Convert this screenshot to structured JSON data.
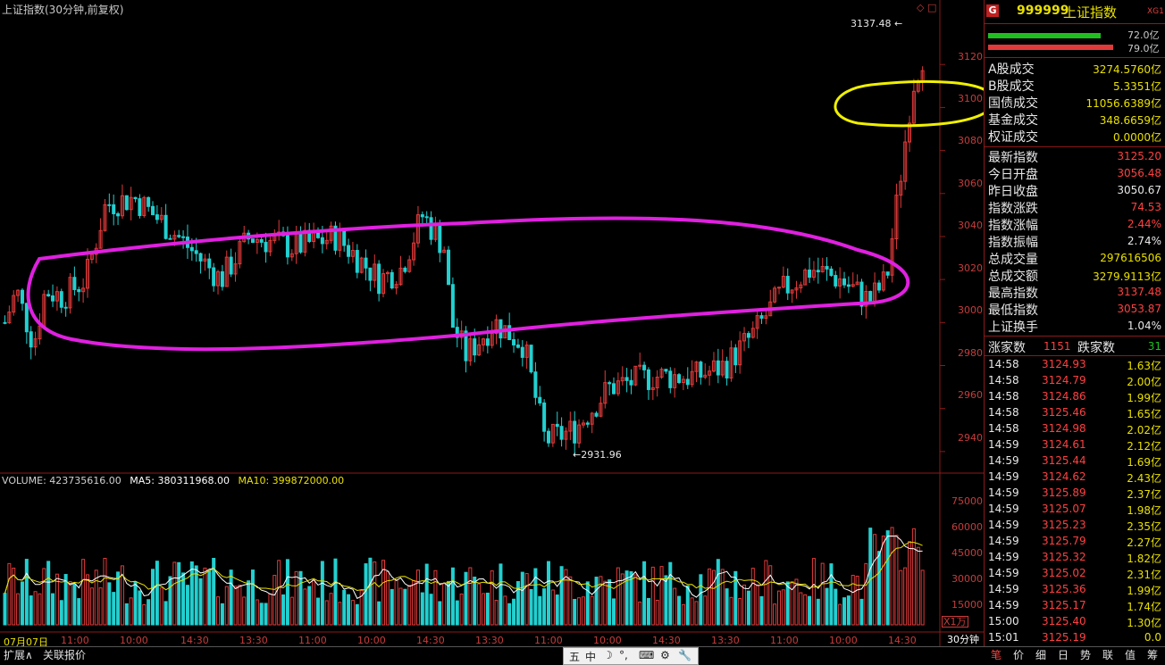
{
  "chart": {
    "title": "上证指数(30分钟,前复权)",
    "high_marker": "3137.48",
    "low_marker": "2931.96",
    "price_ticks": [
      "3120",
      "3100",
      "3080",
      "3060",
      "3040",
      "3020",
      "3000",
      "2980",
      "2960",
      "2940"
    ],
    "volume_header": {
      "label": "VOLUME: 423735616.00",
      "ma5": "MA5: 380311968.00",
      "ma10": "MA10: 399872000.00"
    },
    "volume_ticks": [
      "75000",
      "60000",
      "45000",
      "30000",
      "15000"
    ],
    "volume_unit": "X1万",
    "time_labels": [
      "07月07日",
      "11:00",
      "10:00",
      "14:30",
      "13:30",
      "11:00",
      "10:00",
      "14:30",
      "13:30",
      "11:00",
      "10:00",
      "14:30",
      "13:30",
      "11:00",
      "10:00",
      "14:30"
    ],
    "period": "30分钟",
    "colors": {
      "up": "#e03a3a",
      "down": "#22d0d0",
      "ma_white": "#ffffff",
      "ma_yellow": "#e8e000",
      "annot_magenta": "#e020e0",
      "annot_yellow": "#f0f000",
      "grid": "#8b1a1a"
    }
  },
  "chart_data": {
    "type": "candlestick",
    "title": "上证指数(30分钟,前复权)",
    "ylim": [
      2925,
      3145
    ],
    "price_ticks": [
      3120,
      3100,
      3080,
      3060,
      3040,
      3020,
      3000,
      2980,
      2960,
      2940
    ],
    "high": 3137.48,
    "low": 2931.96,
    "volume_ticks": [
      75000,
      60000,
      45000,
      30000,
      15000
    ],
    "volume_unit": "X1万",
    "annotations": [
      "magenta ellipse around consolidation 2985–3035",
      "yellow ellipse near 3100"
    ]
  },
  "panel": {
    "code": "999999",
    "name": "上证指数",
    "tag": "XG1",
    "bar_values": [
      "72.0亿",
      "79.0亿"
    ],
    "turnover": [
      {
        "k": "A股成交",
        "v": "3274.5760亿"
      },
      {
        "k": "B股成交",
        "v": "5.3351亿"
      },
      {
        "k": "国债成交",
        "v": "11056.6389亿"
      },
      {
        "k": "基金成交",
        "v": "348.6659亿"
      },
      {
        "k": "权证成交",
        "v": "0.0000亿"
      }
    ],
    "stats": [
      {
        "k": "最新指数",
        "v": "3125.20",
        "c": "red"
      },
      {
        "k": "今日开盘",
        "v": "3056.48",
        "c": "red"
      },
      {
        "k": "昨日收盘",
        "v": "3050.67",
        "c": "white"
      },
      {
        "k": "指数涨跌",
        "v": "74.53",
        "c": "red"
      },
      {
        "k": "指数涨幅",
        "v": "2.44%",
        "c": "red"
      },
      {
        "k": "指数振幅",
        "v": "2.74%",
        "c": "white"
      },
      {
        "k": "总成交量",
        "v": "297616506",
        "c": "yellow"
      },
      {
        "k": "总成交额",
        "v": "3279.9113亿",
        "c": "yellow"
      },
      {
        "k": "最高指数",
        "v": "3137.48",
        "c": "red"
      },
      {
        "k": "最低指数",
        "v": "3053.87",
        "c": "red"
      },
      {
        "k": "上证换手",
        "v": "1.04%",
        "c": "white"
      }
    ],
    "breadth": {
      "up_label": "涨家数",
      "up": "1151",
      "down_label": "跌家数",
      "down": "31"
    },
    "ticks": [
      {
        "t": "14:58",
        "p": "3124.93",
        "a": "1.63亿"
      },
      {
        "t": "14:58",
        "p": "3124.79",
        "a": "2.00亿"
      },
      {
        "t": "14:58",
        "p": "3124.86",
        "a": "1.99亿"
      },
      {
        "t": "14:58",
        "p": "3125.46",
        "a": "1.65亿"
      },
      {
        "t": "14:58",
        "p": "3124.98",
        "a": "2.02亿"
      },
      {
        "t": "14:59",
        "p": "3124.61",
        "a": "2.12亿"
      },
      {
        "t": "14:59",
        "p": "3125.44",
        "a": "1.69亿"
      },
      {
        "t": "14:59",
        "p": "3124.62",
        "a": "2.43亿"
      },
      {
        "t": "14:59",
        "p": "3125.89",
        "a": "2.37亿"
      },
      {
        "t": "14:59",
        "p": "3125.07",
        "a": "1.98亿"
      },
      {
        "t": "14:59",
        "p": "3125.23",
        "a": "2.35亿"
      },
      {
        "t": "14:59",
        "p": "3125.79",
        "a": "2.27亿"
      },
      {
        "t": "14:59",
        "p": "3125.32",
        "a": "1.82亿"
      },
      {
        "t": "14:59",
        "p": "3125.02",
        "a": "2.31亿"
      },
      {
        "t": "14:59",
        "p": "3125.36",
        "a": "1.99亿"
      },
      {
        "t": "14:59",
        "p": "3125.17",
        "a": "1.74亿"
      },
      {
        "t": "15:00",
        "p": "3125.40",
        "a": "1.30亿"
      },
      {
        "t": "15:01",
        "p": "3125.19",
        "a": "0.0"
      }
    ]
  },
  "bottom": {
    "tabs": [
      "扩展∧",
      "关联报价"
    ],
    "panel_tabs": [
      "笔",
      "价",
      "细",
      "日",
      "势",
      "联",
      "值",
      "筹"
    ],
    "ime": [
      "五",
      "中",
      "☽",
      "°,",
      "⌨",
      "⚙",
      "🔧"
    ]
  }
}
